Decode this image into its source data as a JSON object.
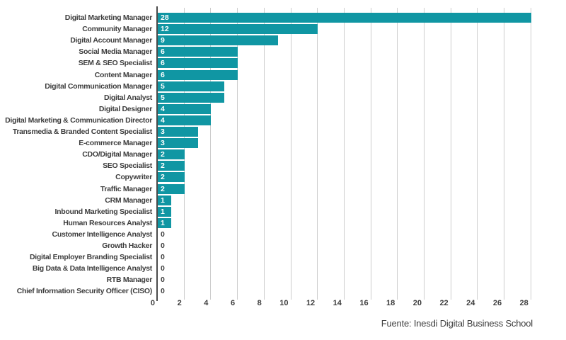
{
  "chart_data": {
    "type": "bar",
    "orientation": "horizontal",
    "title": "",
    "categories": [
      "Digital Marketing Manager",
      "Community Manager",
      "Digital Account Manager",
      "Social Media Manager",
      "SEM & SEO Specialist",
      "Content Manager",
      "Digital Communication Manager",
      "Digital Analyst",
      "Digital Designer",
      "Digital Marketing & Communication Director",
      "Transmedia & Branded Content Specialist",
      "E-commerce Manager",
      "CDO/Digital Manager",
      "SEO Specialist",
      "Copywriter",
      "Traffic Manager",
      "CRM Manager",
      "Inbound Marketing Specialist",
      "Human Resources Analyst",
      "Customer Intelligence Analyst",
      "Growth Hacker",
      "Digital Employer Branding Specialist",
      "Big Data & Data Intelligence Analyst",
      "RTB Manager",
      "Chief Information Security Officer (CISO)"
    ],
    "values": [
      28,
      12,
      9,
      6,
      6,
      6,
      5,
      5,
      4,
      4,
      3,
      3,
      2,
      2,
      2,
      2,
      1,
      1,
      1,
      0,
      0,
      0,
      0,
      0,
      0
    ],
    "x_ticks": [
      0,
      2,
      4,
      6,
      8,
      10,
      12,
      14,
      16,
      18,
      20,
      22,
      24,
      26,
      28
    ],
    "xlim": [
      0,
      28
    ],
    "xlabel": "",
    "ylabel": "",
    "grid": "vertical",
    "legend": "none",
    "bar_color": "#1096a3",
    "value_label_color_inside": "#ffffff",
    "value_label_color_zero": "#3d3d3d",
    "source": "Fuente: Inesdi Digital Business School"
  }
}
